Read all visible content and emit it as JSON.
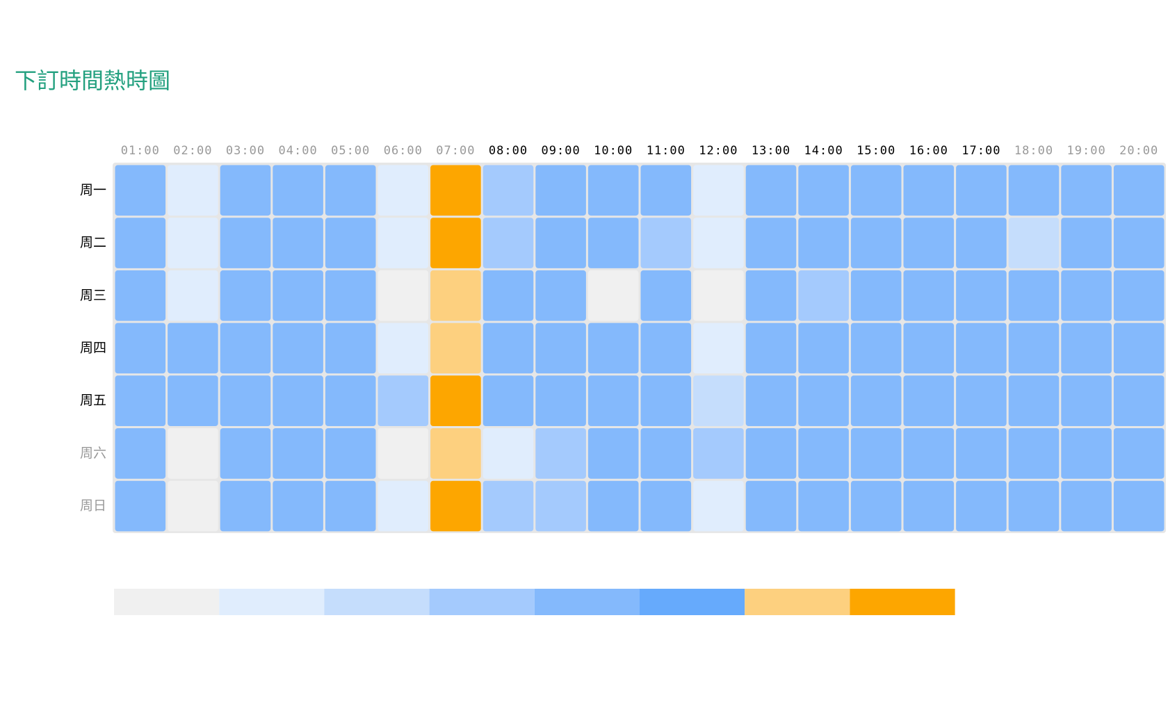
{
  "chart_data": {
    "type": "heatmap",
    "title": "下訂時間熱時圖",
    "x": [
      "01:00",
      "02:00",
      "03:00",
      "04:00",
      "05:00",
      "06:00",
      "07:00",
      "08:00",
      "09:00",
      "10:00",
      "11:00",
      "12:00",
      "13:00",
      "14:00",
      "15:00",
      "16:00",
      "17:00",
      "18:00",
      "19:00",
      "20:00"
    ],
    "categories": [
      "周一",
      "周二",
      "周三",
      "周四",
      "周五",
      "周六",
      "周日"
    ],
    "x_label_colors": [
      "#999",
      "#999",
      "#999",
      "#999",
      "#999",
      "#999",
      "#999",
      "#000",
      "#000",
      "#000",
      "#000",
      "#000",
      "#000",
      "#000",
      "#000",
      "#000",
      "#000",
      "#999",
      "#999",
      "#999"
    ],
    "y_label_colors": [
      "#000",
      "#000",
      "#000",
      "#000",
      "#000",
      "#999",
      "#999"
    ],
    "levels": [
      0,
      1,
      2,
      3,
      4,
      5,
      6,
      7
    ],
    "colors": [
      "#f0f0f0",
      "#e0edfd",
      "#c5ddfc",
      "#a4cafd",
      "#84b9fc",
      "#66aafc",
      "#fdd07f",
      "#fda600"
    ],
    "values": [
      [
        4,
        1,
        4,
        4,
        4,
        1,
        7,
        3,
        4,
        4,
        4,
        1,
        4,
        4,
        4,
        4,
        4,
        4,
        4,
        4
      ],
      [
        4,
        1,
        4,
        4,
        4,
        1,
        7,
        3,
        4,
        4,
        3,
        1,
        4,
        4,
        4,
        4,
        4,
        2,
        4,
        4
      ],
      [
        4,
        1,
        4,
        4,
        4,
        0,
        6,
        4,
        4,
        0,
        4,
        0,
        4,
        3,
        4,
        4,
        4,
        4,
        4,
        4
      ],
      [
        4,
        4,
        4,
        4,
        4,
        1,
        6,
        4,
        4,
        4,
        4,
        1,
        4,
        4,
        4,
        4,
        4,
        4,
        4,
        4
      ],
      [
        4,
        4,
        4,
        4,
        4,
        3,
        7,
        4,
        4,
        4,
        4,
        2,
        4,
        4,
        4,
        4,
        4,
        4,
        4,
        4
      ],
      [
        4,
        0,
        4,
        4,
        4,
        0,
        6,
        1,
        3,
        4,
        4,
        3,
        4,
        4,
        4,
        4,
        4,
        4,
        4,
        4
      ],
      [
        4,
        0,
        4,
        4,
        4,
        1,
        7,
        3,
        3,
        4,
        4,
        1,
        4,
        4,
        4,
        4,
        4,
        4,
        4,
        4
      ]
    ]
  }
}
